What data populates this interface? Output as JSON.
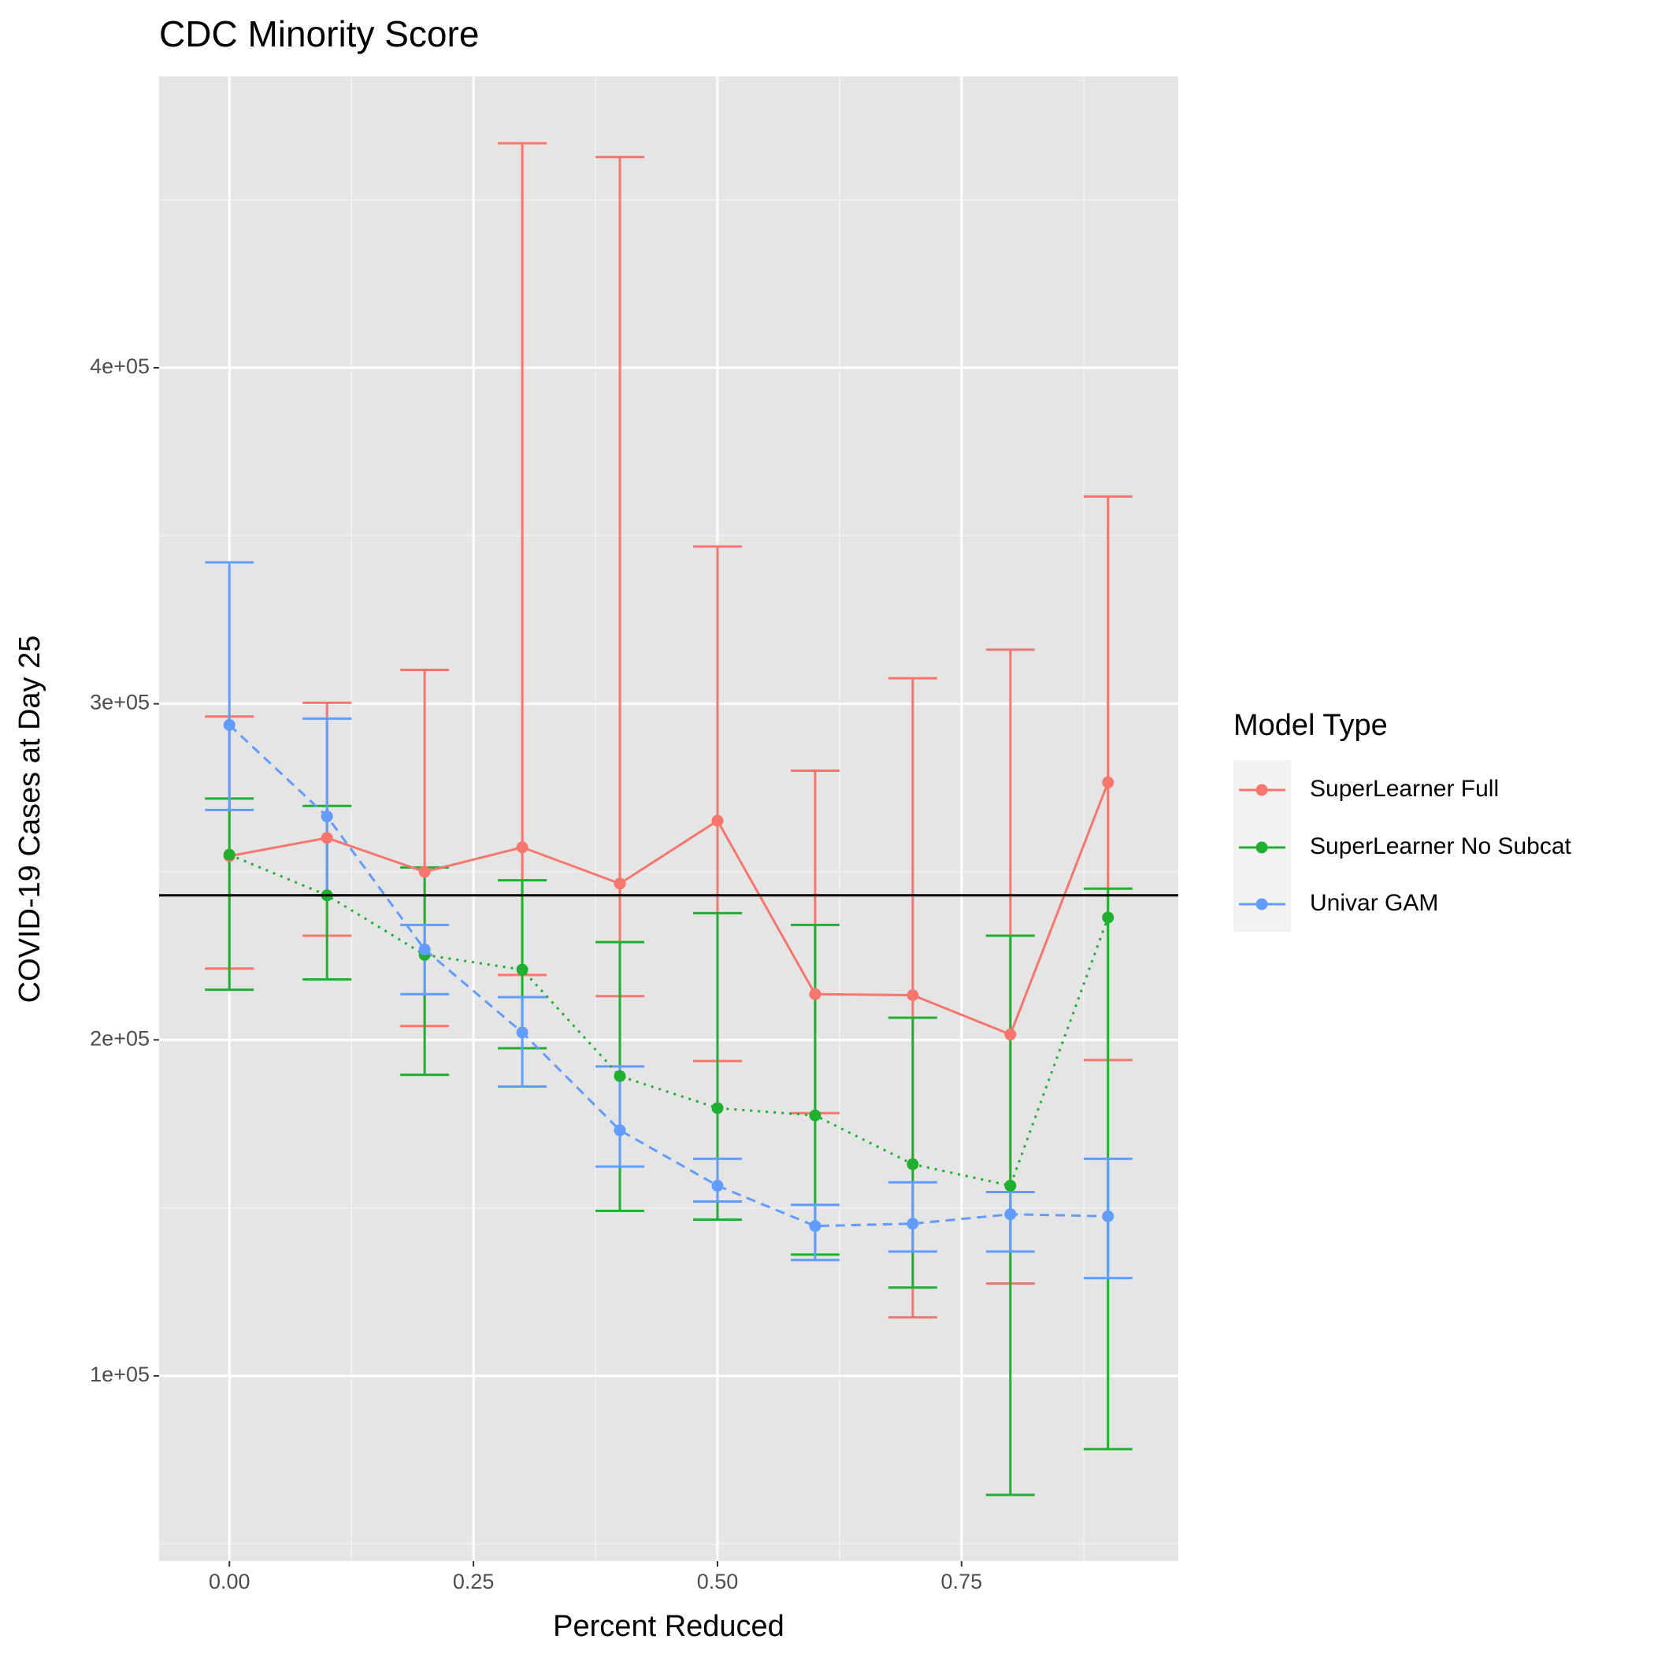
{
  "chart_data": {
    "type": "errorbar-line",
    "title": "CDC Minority Score",
    "x_label": "Percent Reduced",
    "y_label": "COVID-19 Cases at Day 25",
    "legend_title": "Model Type",
    "legend_position": "right",
    "x": [
      0,
      0.1,
      0.2,
      0.3,
      0.4,
      0.5,
      0.6,
      0.7,
      0.8,
      0.9
    ],
    "xlim": [
      -0.072,
      0.972
    ],
    "xticks": [
      {
        "value": 0,
        "label": "0.00"
      },
      {
        "value": 0.25,
        "label": "0.25"
      },
      {
        "value": 0.5,
        "label": "0.50"
      },
      {
        "value": 0.75,
        "label": "0.75"
      }
    ],
    "xminor": [
      0.125,
      0.375,
      0.625,
      0.875
    ],
    "ylim": [
      44900,
      486700
    ],
    "yticks": [
      {
        "value": 100000,
        "label": "1e+05"
      },
      {
        "value": 200000,
        "label": "2e+05"
      },
      {
        "value": 300000,
        "label": "3e+05"
      },
      {
        "value": 400000,
        "label": "4e+05"
      }
    ],
    "yminor": [
      50000,
      150000,
      250000,
      350000,
      450000
    ],
    "grid": true,
    "hline": 243000,
    "series": [
      {
        "name": "SuperLearner Full",
        "color": "#f8766d",
        "linetype": "solid",
        "values": [
          254700,
          260100,
          250000,
          257300,
          246500,
          265200,
          213600,
          213300,
          201600,
          276600
        ],
        "ymax": [
          296200,
          300300,
          310100,
          466800,
          462700,
          346800,
          280100,
          307600,
          316100,
          361700
        ],
        "ymin": [
          221200,
          231000,
          204100,
          219300,
          213000,
          193700,
          178200,
          117400,
          127500,
          194000
        ]
      },
      {
        "name": "SuperLearner No Subcat",
        "color": "#1fb02f",
        "linetype": "dotted",
        "values": [
          255100,
          243000,
          225300,
          220900,
          189200,
          179700,
          177500,
          163000,
          156600,
          236400
        ],
        "ymax": [
          271800,
          269600,
          251300,
          247500,
          229100,
          237700,
          234200,
          206600,
          231000,
          245000
        ],
        "ymin": [
          214900,
          218000,
          189600,
          197500,
          149100,
          146500,
          136100,
          126300,
          64600,
          78200
        ]
      },
      {
        "name": "Univar GAM",
        "color": "#619cff",
        "linetype": "dashed",
        "values": [
          293700,
          266500,
          226900,
          202200,
          173100,
          156600,
          144600,
          145300,
          148100,
          147500
        ],
        "ymax": [
          342100,
          295600,
          234200,
          212700,
          192100,
          164600,
          150900,
          157600,
          154700,
          164600
        ],
        "ymin": [
          268400,
          243000,
          213600,
          186100,
          162300,
          151900,
          134500,
          137000,
          137000,
          129100
        ]
      }
    ]
  }
}
